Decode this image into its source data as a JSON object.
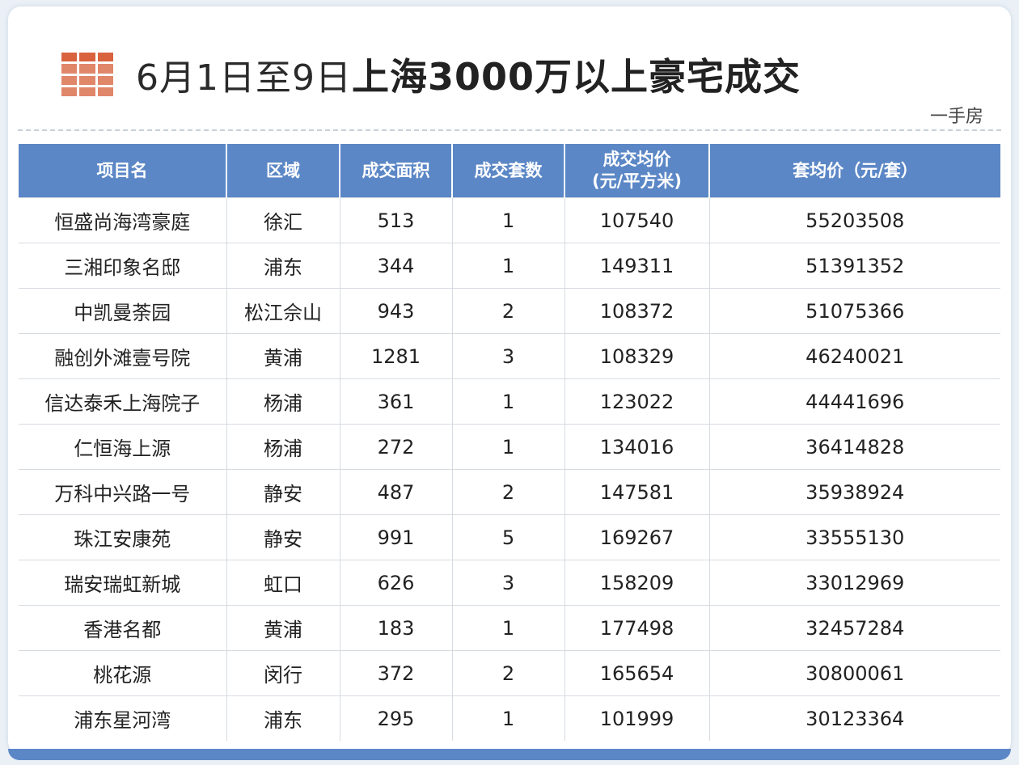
{
  "title": {
    "date_part": "6月1日至9日",
    "main_part": "上海3000万以上豪宅成交"
  },
  "subtag": "一手房",
  "colors": {
    "header_bg": "#5b87c6",
    "icon_color": "#e0876a"
  },
  "table": {
    "headers": [
      "项目名",
      "区域",
      "成交面积",
      "成交套数",
      "成交均价\n(元/平方米)",
      "套均价（元/套）"
    ],
    "rows": [
      [
        "恒盛尚海湾豪庭",
        "徐汇",
        "513",
        "1",
        "107540",
        "55203508"
      ],
      [
        "三湘印象名邸",
        "浦东",
        "344",
        "1",
        "149311",
        "51391352"
      ],
      [
        "中凯曼荼园",
        "松江佘山",
        "943",
        "2",
        "108372",
        "51075366"
      ],
      [
        "融创外滩壹号院",
        "黄浦",
        "1281",
        "3",
        "108329",
        "46240021"
      ],
      [
        "信达泰禾上海院子",
        "杨浦",
        "361",
        "1",
        "123022",
        "44441696"
      ],
      [
        "仁恒海上源",
        "杨浦",
        "272",
        "1",
        "134016",
        "36414828"
      ],
      [
        "万科中兴路一号",
        "静安",
        "487",
        "2",
        "147581",
        "35938924"
      ],
      [
        "珠江安康苑",
        "静安",
        "991",
        "5",
        "169267",
        "33555130"
      ],
      [
        "瑞安瑞虹新城",
        "虹口",
        "626",
        "3",
        "158209",
        "33012969"
      ],
      [
        "香港名都",
        "黄浦",
        "183",
        "1",
        "177498",
        "32457284"
      ],
      [
        "桃花源",
        "闵行",
        "372",
        "2",
        "165654",
        "30800061"
      ],
      [
        "浦东星河湾",
        "浦东",
        "295",
        "1",
        "101999",
        "30123364"
      ]
    ]
  }
}
